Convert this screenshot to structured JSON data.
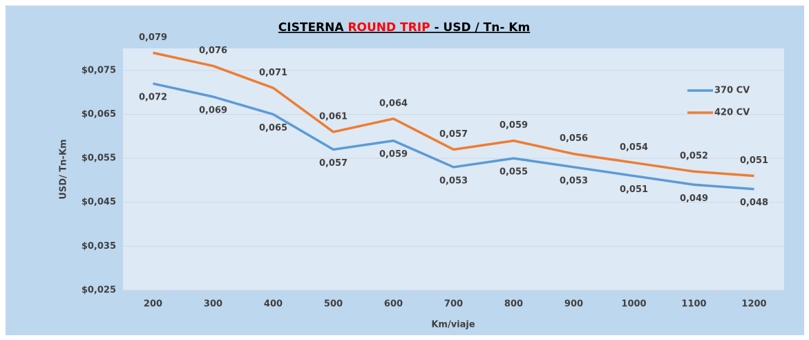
{
  "chart_data": {
    "type": "line",
    "title": {
      "start": "CISTERNA",
      "highlight": "ROUND TRIP",
      "end": "- USD / Tn- Km"
    },
    "x_label": "Km/viaje",
    "y_label": "USD/ Tn-Km",
    "categories": [
      "200",
      "300",
      "400",
      "500",
      "600",
      "700",
      "800",
      "900",
      "1000",
      "1100",
      "1200"
    ],
    "series": [
      {
        "name": "370 CV",
        "color": "#5b9bd5",
        "values": [
          0.072,
          0.069,
          0.065,
          0.057,
          0.059,
          0.053,
          0.055,
          0.053,
          0.051,
          0.049,
          0.048
        ],
        "value_labels": [
          "0,072",
          "0,069",
          "0,065",
          "0,057",
          "0,059",
          "0,053",
          "0,055",
          "0,053",
          "0,051",
          "0,049",
          "0,048"
        ]
      },
      {
        "name": "420 CV",
        "color": "#ed7d31",
        "values": [
          0.079,
          0.076,
          0.071,
          0.061,
          0.064,
          0.057,
          0.059,
          0.056,
          0.054,
          0.052,
          0.051
        ],
        "value_labels": [
          "0,079",
          "0,076",
          "0,071",
          "0,061",
          "0,064",
          "0,057",
          "0,059",
          "0,056",
          "0,054",
          "0,052",
          "0,051"
        ]
      }
    ],
    "ylim": [
      0.025,
      0.08
    ],
    "yticks": [
      {
        "value": 0.025,
        "label": "$0,025"
      },
      {
        "value": 0.035,
        "label": "$0,035"
      },
      {
        "value": 0.045,
        "label": "$0,045"
      },
      {
        "value": 0.055,
        "label": "$0,055"
      },
      {
        "value": 0.065,
        "label": "$0,065"
      },
      {
        "value": 0.075,
        "label": "$0,075"
      }
    ],
    "grid": true,
    "legend": "upper right"
  }
}
